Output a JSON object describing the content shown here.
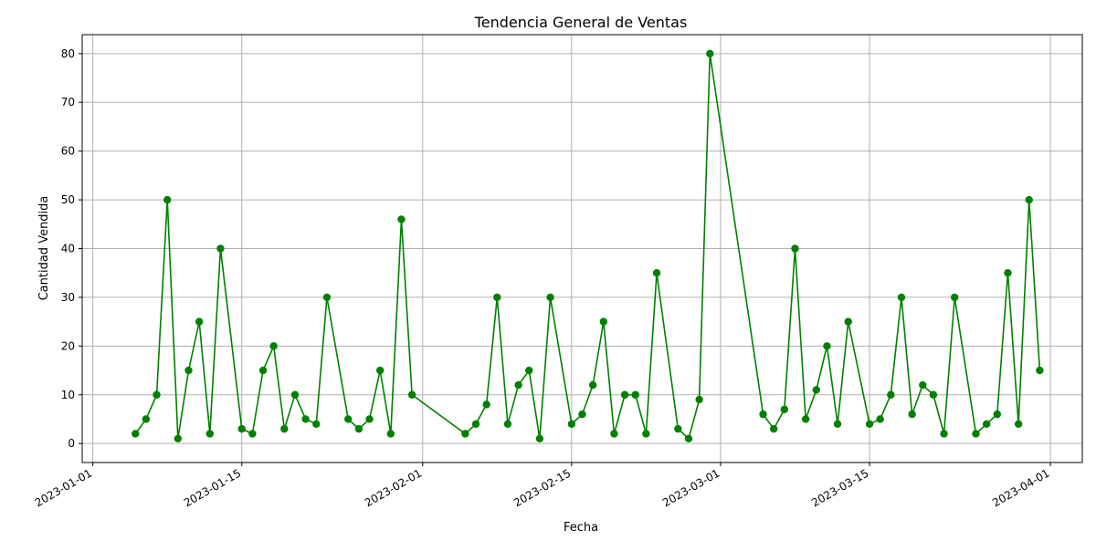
{
  "chart_data": {
    "type": "line",
    "title": "Tendencia General de Ventas",
    "xlabel": "Fecha",
    "ylabel": "Cantidad Vendida",
    "xlim": [
      "2022-12-31",
      "2023-04-04"
    ],
    "ylim": [
      -3.9,
      83.9
    ],
    "x_ticks": [
      "2023-01-01",
      "2023-01-15",
      "2023-02-01",
      "2023-02-15",
      "2023-03-01",
      "2023-03-15",
      "2023-04-01"
    ],
    "y_ticks": [
      0,
      10,
      20,
      30,
      40,
      50,
      60,
      70,
      80
    ],
    "grid": true,
    "line_color": "#008000",
    "marker": "circle",
    "x": [
      "2023-01-05",
      "2023-01-06",
      "2023-01-07",
      "2023-01-08",
      "2023-01-09",
      "2023-01-10",
      "2023-01-11",
      "2023-01-12",
      "2023-01-13",
      "2023-01-15",
      "2023-01-16",
      "2023-01-17",
      "2023-01-18",
      "2023-01-19",
      "2023-01-20",
      "2023-01-21",
      "2023-01-22",
      "2023-01-23",
      "2023-01-25",
      "2023-01-26",
      "2023-01-27",
      "2023-01-28",
      "2023-01-29",
      "2023-01-30",
      "2023-01-31",
      "2023-02-05",
      "2023-02-06",
      "2023-02-07",
      "2023-02-08",
      "2023-02-09",
      "2023-02-10",
      "2023-02-11",
      "2023-02-12",
      "2023-02-13",
      "2023-02-15",
      "2023-02-16",
      "2023-02-17",
      "2023-02-18",
      "2023-02-19",
      "2023-02-20",
      "2023-02-21",
      "2023-02-22",
      "2023-02-23",
      "2023-02-25",
      "2023-02-26",
      "2023-02-27",
      "2023-02-28",
      "2023-03-05",
      "2023-03-06",
      "2023-03-07",
      "2023-03-08",
      "2023-03-09",
      "2023-03-10",
      "2023-03-11",
      "2023-03-12",
      "2023-03-13",
      "2023-03-15",
      "2023-03-16",
      "2023-03-17",
      "2023-03-18",
      "2023-03-19",
      "2023-03-20",
      "2023-03-21",
      "2023-03-22",
      "2023-03-23",
      "2023-03-25",
      "2023-03-26",
      "2023-03-27",
      "2023-03-28",
      "2023-03-29",
      "2023-03-30",
      "2023-03-31"
    ],
    "y": [
      2,
      5,
      10,
      50,
      1,
      15,
      25,
      2,
      40,
      3,
      2,
      15,
      20,
      3,
      10,
      5,
      4,
      30,
      5,
      3,
      5,
      15,
      2,
      46,
      10,
      2,
      4,
      8,
      30,
      4,
      12,
      15,
      1,
      30,
      4,
      6,
      12,
      25,
      2,
      10,
      10,
      2,
      35,
      3,
      1,
      9,
      80,
      6,
      3,
      7,
      40,
      5,
      11,
      20,
      4,
      25,
      4,
      5,
      10,
      30,
      6,
      12,
      10,
      2,
      30,
      2,
      4,
      6,
      35,
      4,
      50,
      15
    ]
  }
}
